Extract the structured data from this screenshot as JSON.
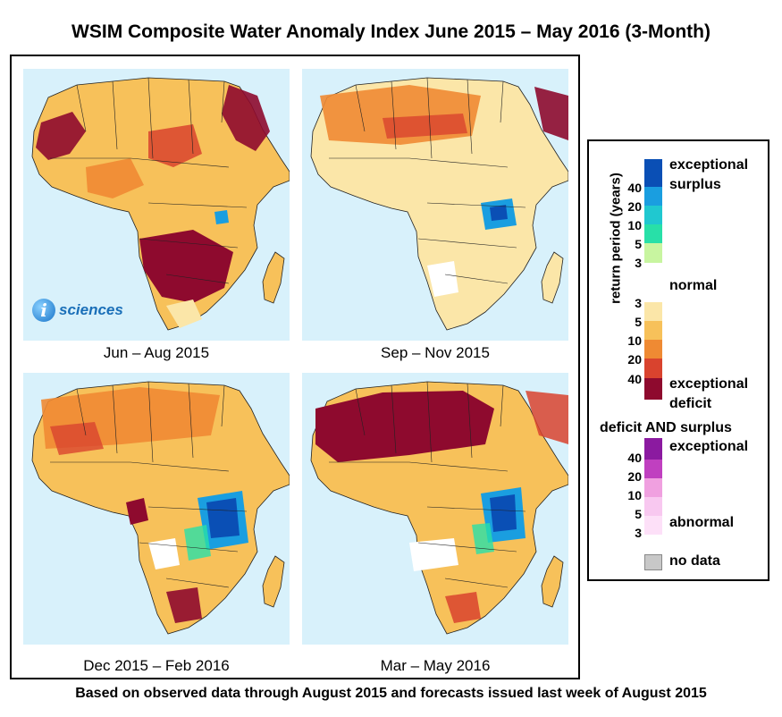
{
  "title": "WSIM Composite Water Anomaly Index June 2015 – May 2016 (3-Month)",
  "footer": "Based on observed data through August 2015 and forecasts issued last week of August 2015",
  "logo": {
    "letter": "i",
    "word": "sciences"
  },
  "panels": [
    {
      "caption": "Jun – Aug 2015"
    },
    {
      "caption": "Sep – Nov 2015"
    },
    {
      "caption": "Dec 2015 – Feb 2016"
    },
    {
      "caption": "Mar – May 2016"
    }
  ],
  "legend": {
    "axis_label": "return period (years)",
    "exceptional_surplus_1": "exceptional",
    "exceptional_surplus_2": "surplus",
    "normal": "normal",
    "exceptional_deficit_1": "exceptional",
    "exceptional_deficit_2": "deficit",
    "both_title": "deficit AND surplus",
    "both_exceptional": "exceptional",
    "both_abnormal": "abnormal",
    "no_data": "no data",
    "surplus_ticks": [
      "40",
      "20",
      "10",
      "5",
      "3"
    ],
    "deficit_ticks": [
      "3",
      "5",
      "10",
      "20",
      "40"
    ],
    "both_ticks": [
      "40",
      "20",
      "10",
      "5",
      "3"
    ],
    "surplus_colors": [
      "#0a4fb5",
      "#1a9ee0",
      "#20c8d0",
      "#28e0a8",
      "#c8f5a0"
    ],
    "deficit_colors": [
      "#fbe6a8",
      "#f7c15a",
      "#ef8a33",
      "#d9432e",
      "#8e0a2e"
    ],
    "both_colors": [
      "#8b1aa0",
      "#c040c0",
      "#f0a0e0",
      "#f8c8f0",
      "#fde0f8"
    ],
    "no_data_color": "#c8c8c8"
  },
  "colors": {
    "ocean": "#d8f1fb",
    "normal": "#ffffff",
    "mild_deficit": "#fbe6a8",
    "moderate_deficit": "#f7c15a",
    "severe_deficit": "#ef8a33",
    "extreme_deficit": "#d9432e",
    "exceptional_deficit": "#8e0a2e",
    "surplus": "#1a9ee0",
    "exceptional_surplus": "#0a4fb5",
    "mild_surplus": "#28e0a8",
    "both": "#c040c0"
  }
}
